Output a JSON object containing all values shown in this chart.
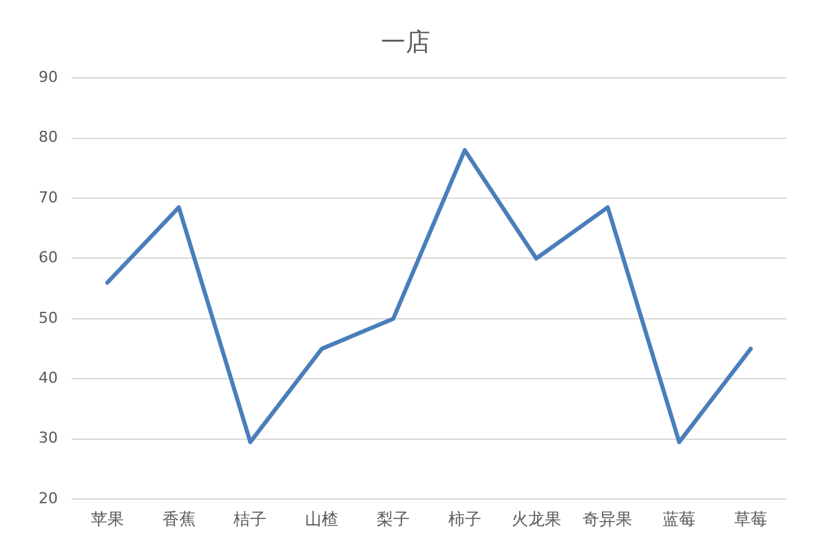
{
  "chart_data": {
    "type": "line",
    "title": "一店",
    "categories": [
      "苹果",
      "香蕉",
      "桔子",
      "山楂",
      "梨子",
      "柿子",
      "火龙果",
      "奇异果",
      "蓝莓",
      "草莓"
    ],
    "series": [
      {
        "color": "#4a7ebb",
        "values": [
          56,
          68.5,
          29.5,
          45,
          50,
          78,
          60,
          68.5,
          29.5,
          45
        ]
      }
    ],
    "ylim": [
      20,
      90
    ],
    "yticks": [
      20,
      30,
      40,
      50,
      60,
      70,
      80,
      90
    ],
    "grid": "y",
    "legend": false,
    "marker": "none",
    "line_style": "solid"
  }
}
